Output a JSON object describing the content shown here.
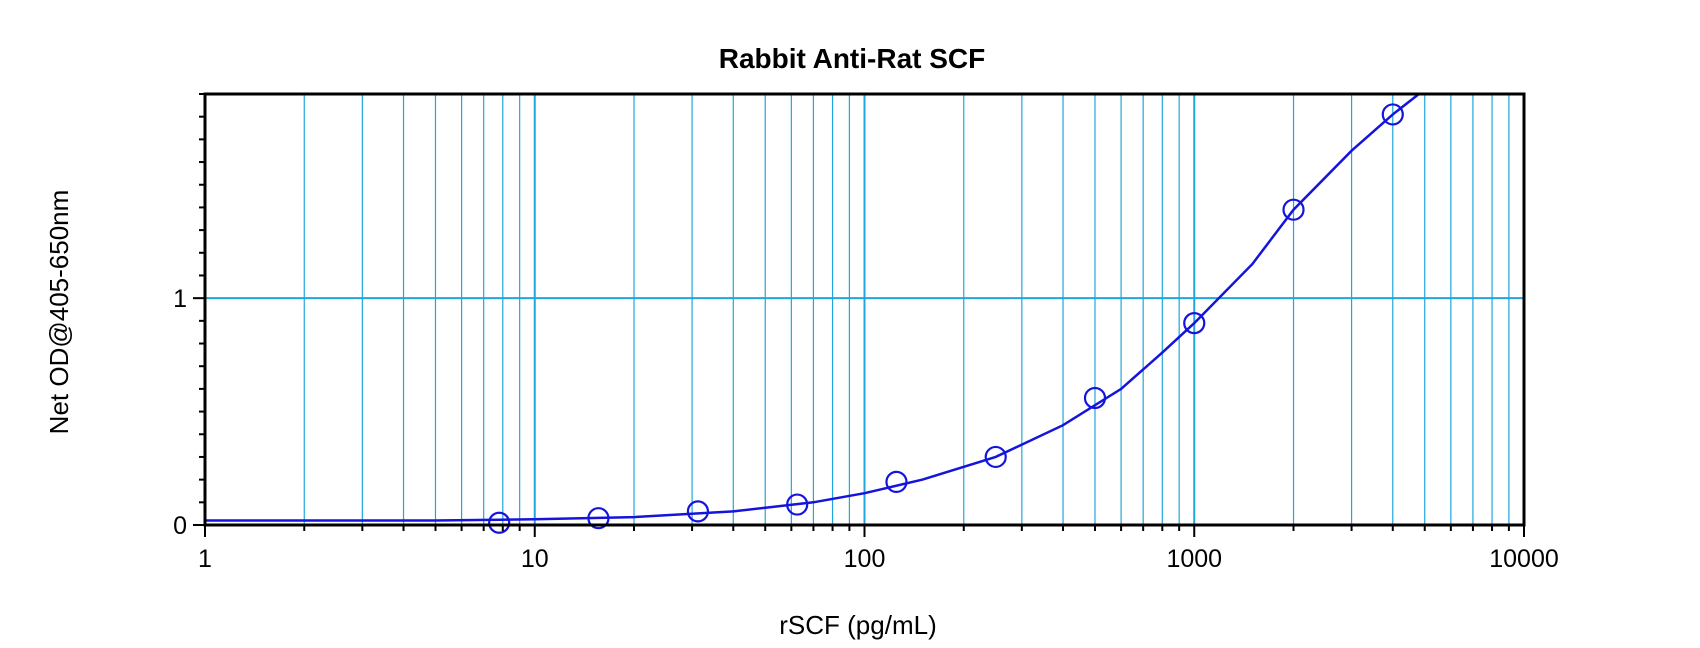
{
  "chart_data": {
    "type": "scatter",
    "title": "Rabbit Anti-Rat SCF",
    "xlabel": "rSCF (pg/mL)",
    "ylabel": "Net OD@405-650nm",
    "xscale": "log",
    "xlim": [
      1,
      10000
    ],
    "ylim": [
      0,
      1.9
    ],
    "x_tick_labels": [
      "1",
      "10",
      "100",
      "1000",
      "10000"
    ],
    "y_tick_labels": [
      "0",
      "1"
    ],
    "grid": true,
    "series": [
      {
        "x": [
          7.8,
          15.6,
          31.25,
          62.5,
          125,
          250,
          500,
          1000,
          2000,
          4000
        ],
        "y": [
          0.01,
          0.03,
          0.06,
          0.09,
          0.19,
          0.3,
          0.56,
          0.89,
          1.39,
          1.81
        ]
      }
    ],
    "fit_curve": {
      "x": [
        1,
        5,
        10,
        20,
        40,
        70,
        100,
        150,
        250,
        400,
        600,
        800,
        1000,
        1500,
        2000,
        3000,
        4000,
        4800
      ],
      "y": [
        0.02,
        0.02,
        0.025,
        0.035,
        0.06,
        0.1,
        0.14,
        0.2,
        0.3,
        0.44,
        0.6,
        0.76,
        0.89,
        1.15,
        1.39,
        1.65,
        1.81,
        1.9
      ]
    },
    "colors": {
      "series": "#1414dc",
      "grid": "#1fa7dd",
      "frame": "#000000"
    }
  }
}
